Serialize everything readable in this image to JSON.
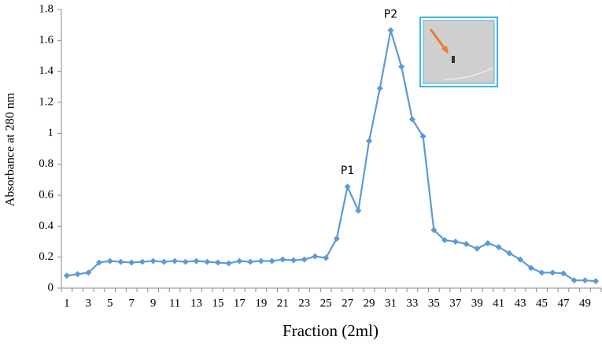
{
  "chart_data": {
    "type": "line",
    "x_label": "Fraction (2ml)",
    "y_label": "Absorbance at 280 nm",
    "annotations": [
      "P1",
      "P2"
    ],
    "categories": [
      1,
      null,
      3,
      null,
      5,
      null,
      7,
      null,
      9,
      null,
      11,
      null,
      13,
      null,
      15,
      null,
      17,
      null,
      19,
      null,
      21,
      null,
      23,
      null,
      25,
      null,
      27,
      null,
      29,
      null,
      31,
      null,
      33,
      null,
      35,
      null,
      37,
      null,
      39,
      null,
      41,
      null,
      43,
      null,
      45,
      null,
      47,
      null,
      49,
      null
    ],
    "series": [
      {
        "color": "#5b9bd5",
        "values": [
          0.08,
          0.09,
          0.1,
          0.165,
          0.175,
          0.17,
          0.165,
          0.17,
          0.175,
          0.17,
          0.175,
          0.17,
          0.175,
          0.17,
          0.165,
          0.16,
          0.175,
          0.17,
          0.175,
          0.175,
          0.185,
          0.18,
          0.185,
          0.205,
          0.195,
          0.32,
          0.655,
          0.5,
          0.95,
          1.29,
          1.665,
          1.43,
          1.09,
          0.98,
          0.375,
          0.31,
          0.3,
          0.285,
          0.255,
          0.29,
          0.265,
          0.225,
          0.185,
          0.13,
          0.1,
          0.1,
          0.095,
          0.05,
          0.05,
          0.045
        ]
      }
    ],
    "ylim": [
      0,
      1.8
    ],
    "yticks": [
      0,
      0.2,
      0.4,
      0.6,
      0.8,
      1,
      1.2,
      1.4,
      1.6,
      1.8
    ],
    "grid": false
  }
}
